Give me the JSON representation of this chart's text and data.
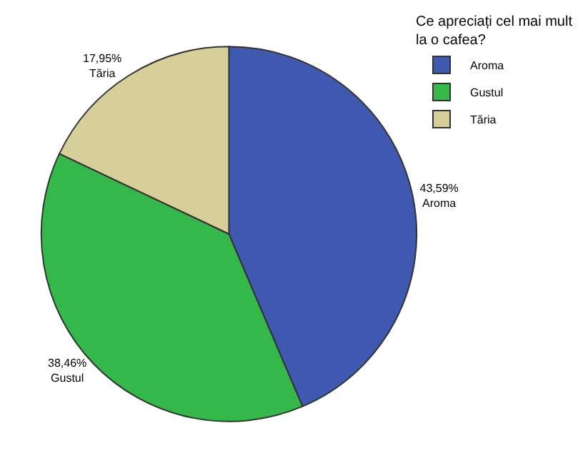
{
  "chart_data": {
    "type": "pie",
    "legend_title": "Ce apreciați cel mai mult la o cafea?",
    "legend": "top right",
    "categories": [
      "Aroma",
      "Gustul",
      "Tăria"
    ],
    "values": [
      43.59,
      38.46,
      17.95
    ],
    "colors": [
      "#3f58b0",
      "#34b84a",
      "#d6cf9a"
    ],
    "value_labels": [
      "43,59%",
      "38,46%",
      "17,95%"
    ]
  }
}
